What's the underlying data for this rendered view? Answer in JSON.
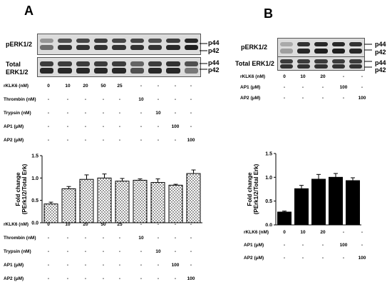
{
  "panel_a": {
    "letter": "A",
    "blot_labels": {
      "top": "pERK1/2",
      "bottom_line1": "Total",
      "bottom_line2": "ERK1/2"
    },
    "band_labels": {
      "p44": "p44",
      "p42": "p42"
    },
    "table_top": {
      "rows": [
        {
          "label": "rKLK6  (nM)",
          "cells": [
            "0",
            "10",
            "20",
            "50",
            "25",
            "-",
            "-",
            "-",
            "-"
          ]
        },
        {
          "label": "Thrombin (nM)",
          "cells": [
            "-",
            "-",
            "-",
            "-",
            "-",
            "10",
            "-",
            "-",
            "-"
          ]
        },
        {
          "label": "Trypsin  (nM)",
          "cells": [
            "-",
            "-",
            "-",
            "-",
            "-",
            "-",
            "10",
            "-",
            "-"
          ]
        },
        {
          "label": "AP1 (μM)",
          "cells": [
            "-",
            "-",
            "-",
            "-",
            "-",
            "-",
            "-",
            "100",
            "-"
          ]
        },
        {
          "label": "AP2 (μM)",
          "cells": [
            "-",
            "-",
            "-",
            "-",
            "-",
            "-",
            "-",
            "-",
            "100"
          ]
        }
      ]
    },
    "table_bottom": {
      "rows": [
        {
          "label": "rKLK6  (nM)",
          "cells": [
            "0",
            "10",
            "20",
            "50",
            "25",
            "-",
            "-",
            "-",
            "-"
          ]
        },
        {
          "label": "Thrombin (nM)",
          "cells": [
            "-",
            "-",
            "-",
            "-",
            "-",
            "10",
            "-",
            "-",
            "-"
          ]
        },
        {
          "label": "Trypsin  (nM)",
          "cells": [
            "-",
            "-",
            "-",
            "-",
            "-",
            "-",
            "10",
            "-",
            "-"
          ]
        },
        {
          "label": "AP1 (μM)",
          "cells": [
            "-",
            "-",
            "-",
            "-",
            "-",
            "-",
            "-",
            "100",
            "-"
          ]
        },
        {
          "label": "AP2 (μM)",
          "cells": [
            "-",
            "-",
            "-",
            "-",
            "-",
            "-",
            "-",
            "-",
            "100"
          ]
        }
      ]
    }
  },
  "panel_b": {
    "letter": "B",
    "blot_labels": {
      "top": "pERK1/2",
      "bottom": "Total ERK1/2"
    },
    "band_labels": {
      "p44": "p44",
      "p42": "p42"
    },
    "table_top": {
      "rows": [
        {
          "label": "rKLK6 (nM)",
          "cells": [
            "0",
            "10",
            "20",
            "-",
            "-"
          ]
        },
        {
          "label": "AP1 (μM)",
          "cells": [
            "-",
            "-",
            "-",
            "100",
            "-"
          ]
        },
        {
          "label": "AP2 (μM)",
          "cells": [
            "-",
            "-",
            "-",
            "-",
            "100"
          ]
        }
      ]
    },
    "table_bottom": {
      "rows": [
        {
          "label": "rKLK6 (nM)",
          "cells": [
            "0",
            "10",
            "20",
            "-",
            "-"
          ]
        },
        {
          "label": "AP1 (μM)",
          "cells": [
            "-",
            "-",
            "-",
            "100",
            "-"
          ]
        },
        {
          "label": "AP2 (μM)",
          "cells": [
            "-",
            "-",
            "-",
            "-",
            "100"
          ]
        }
      ]
    }
  },
  "chart_data": [
    {
      "type": "bar",
      "panel": "A",
      "title": "",
      "xlabel": "",
      "ylabel": "Fold change (PErk1/2/Total Erk)",
      "ylim": [
        0,
        1.5
      ],
      "yticks": [
        "0.0",
        "0.5",
        "1.0",
        "1.5"
      ],
      "bar_style": "white fill with black dot pattern",
      "values": [
        0.42,
        0.76,
        0.97,
        1.0,
        0.93,
        0.95,
        0.9,
        0.84,
        1.1
      ],
      "errors": [
        0.04,
        0.05,
        0.1,
        0.09,
        0.06,
        0.03,
        0.08,
        0.02,
        0.08
      ]
    },
    {
      "type": "bar",
      "panel": "B",
      "title": "",
      "xlabel": "",
      "ylabel": "Fold change (PErk1/2/Total Erk)",
      "ylim": [
        0,
        1.5
      ],
      "yticks": [
        "0.0",
        "0.5",
        "1.0",
        "1.5"
      ],
      "bar_style": "solid black",
      "values": [
        0.27,
        0.76,
        0.96,
        1.0,
        0.93
      ],
      "errors": [
        0.02,
        0.07,
        0.1,
        0.08,
        0.06
      ]
    }
  ]
}
